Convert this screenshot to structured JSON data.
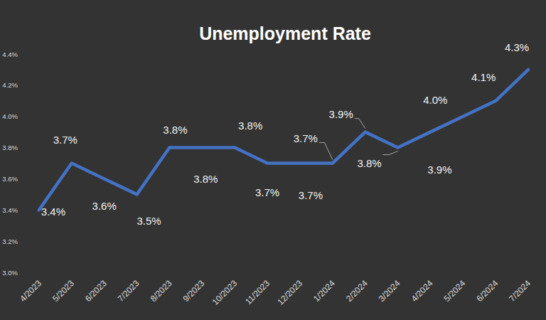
{
  "chart_data": {
    "type": "line",
    "title": "Unemployment Rate",
    "categories": [
      "4/2023",
      "5/2023",
      "6/2023",
      "7/2023",
      "8/2023",
      "9/2023",
      "10/2023",
      "11/2023",
      "12/2023",
      "1/2024",
      "2/2024",
      "3/2024",
      "4/2024",
      "5/2024",
      "6/2024",
      "7/2024"
    ],
    "values": [
      3.4,
      3.7,
      3.6,
      3.5,
      3.8,
      3.8,
      3.8,
      3.7,
      3.7,
      3.7,
      3.9,
      3.8,
      3.9,
      4.0,
      4.1,
      4.3
    ],
    "value_labels": [
      "3.4%",
      "3.7%",
      "3.6%",
      "3.5%",
      "3.8%",
      "3.8%",
      "3.8%",
      "3.7%",
      "3.7%",
      "3.7%",
      "3.9%",
      "3.8%",
      "3.9%",
      "4.0%",
      "4.1%",
      "4.3%"
    ],
    "color": "#4472c4",
    "ylim": [
      3.0,
      4.4
    ],
    "yticks": [
      {
        "value": 3.0,
        "label": "3.0%"
      },
      {
        "value": 3.2,
        "label": "3.2%"
      },
      {
        "value": 3.4,
        "label": "3.4%"
      },
      {
        "value": 3.6,
        "label": "3.6%"
      },
      {
        "value": 3.8,
        "label": "3.8%"
      },
      {
        "value": 4.0,
        "label": "4.0%"
      },
      {
        "value": 4.2,
        "label": "4.2%"
      },
      {
        "value": 4.4,
        "label": "4.4%"
      }
    ],
    "grid": false,
    "data_labels": true
  }
}
